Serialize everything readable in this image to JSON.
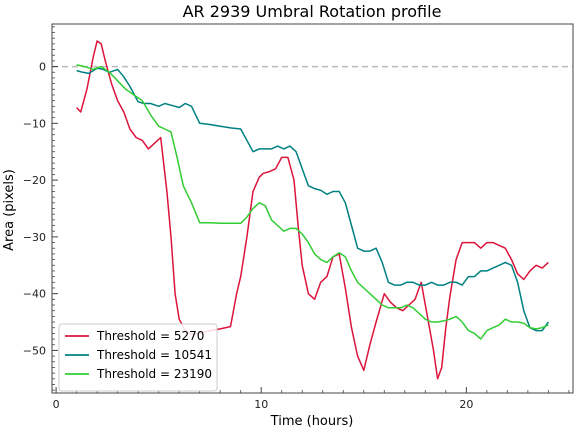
{
  "chart_data": {
    "type": "line",
    "title": "AR 2939 Umbral Rotation profile",
    "xlabel": "Time (hours)",
    "ylabel": "Area (pixels)",
    "xlim": [
      -0.2,
      25.2
    ],
    "ylim": [
      -57.5,
      7.5
    ],
    "xticks": [
      0,
      10,
      20
    ],
    "yticks": [
      0,
      -10,
      -20,
      -30,
      -40,
      -50
    ],
    "reference_line": {
      "y": 0,
      "style": "dashed",
      "color": "#bbbbbb"
    },
    "grid": false,
    "legend_position": "lower-left",
    "series": [
      {
        "name": "Threshold = 5270",
        "color": "#dc143c",
        "x": [
          1.0,
          1.2,
          1.5,
          1.8,
          2.0,
          2.2,
          2.4,
          2.7,
          3.0,
          3.3,
          3.6,
          3.9,
          4.2,
          4.5,
          4.8,
          5.1,
          5.4,
          5.6,
          5.8,
          6.0,
          6.3,
          6.6,
          7.0,
          7.5,
          8.0,
          8.5,
          8.8,
          9.0,
          9.3,
          9.6,
          9.9,
          10.1,
          10.4,
          10.7,
          11.0,
          11.3,
          11.6,
          11.8,
          12.0,
          12.3,
          12.6,
          12.9,
          13.2,
          13.5,
          13.8,
          14.1,
          14.4,
          14.7,
          15.0,
          15.3,
          15.6,
          16.0,
          16.3,
          16.6,
          16.9,
          17.2,
          17.5,
          17.8,
          18.1,
          18.4,
          18.6,
          18.8,
          19.0,
          19.2,
          19.5,
          19.8,
          20.1,
          20.4,
          20.7,
          21.0,
          21.3,
          21.6,
          21.9,
          22.2,
          22.5,
          22.8,
          23.1,
          23.4,
          23.7,
          24.0
        ],
        "y": [
          -7.2,
          -8.0,
          -4.0,
          1.5,
          4.5,
          4.0,
          1.0,
          -3.0,
          -6.0,
          -8.0,
          -11.0,
          -12.5,
          -13.0,
          -14.5,
          -13.5,
          -12.5,
          -22.0,
          -30.0,
          -40.0,
          -44.5,
          -46.5,
          -47.2,
          -47.0,
          -46.5,
          -46.2,
          -45.8,
          -40.0,
          -37.0,
          -30.0,
          -22.0,
          -19.5,
          -18.8,
          -18.5,
          -18.0,
          -16.0,
          -16.0,
          -20.0,
          -28.0,
          -35.0,
          -40.0,
          -41.0,
          -38.0,
          -37.0,
          -33.5,
          -33.0,
          -39.0,
          -46.0,
          -51.0,
          -53.5,
          -49.0,
          -45.0,
          -40.0,
          -41.5,
          -42.5,
          -43.0,
          -42.0,
          -41.0,
          -38.0,
          -44.0,
          -50.0,
          -55.0,
          -53.0,
          -46.0,
          -40.5,
          -34.0,
          -31.0,
          -31.0,
          -31.0,
          -32.0,
          -31.0,
          -31.0,
          -31.5,
          -32.0,
          -34.0,
          -36.5,
          -37.5,
          -36.0,
          -35.0,
          -35.5,
          -34.5
        ]
      },
      {
        "name": "Threshold = 10541",
        "color": "#008080",
        "x": [
          1.0,
          1.3,
          1.6,
          2.0,
          2.3,
          2.6,
          3.0,
          3.3,
          3.6,
          4.0,
          4.3,
          4.6,
          5.0,
          5.3,
          5.6,
          6.0,
          6.3,
          6.6,
          7.0,
          7.5,
          8.0,
          8.5,
          9.0,
          9.3,
          9.6,
          9.9,
          10.2,
          10.5,
          10.8,
          11.1,
          11.4,
          11.7,
          12.0,
          12.3,
          12.6,
          12.9,
          13.2,
          13.5,
          13.8,
          14.1,
          14.4,
          14.7,
          15.0,
          15.3,
          15.6,
          15.9,
          16.2,
          16.5,
          16.8,
          17.1,
          17.4,
          17.7,
          18.0,
          18.3,
          18.6,
          18.9,
          19.2,
          19.5,
          19.8,
          20.1,
          20.4,
          20.7,
          21.0,
          21.3,
          21.6,
          21.9,
          22.2,
          22.5,
          22.8,
          23.1,
          23.4,
          23.7,
          24.0
        ],
        "y": [
          -0.7,
          -1.0,
          -1.2,
          -0.3,
          -0.5,
          -1.0,
          -0.5,
          -1.8,
          -3.5,
          -6.2,
          -6.5,
          -6.5,
          -7.0,
          -6.5,
          -6.8,
          -7.2,
          -6.5,
          -7.0,
          -10.0,
          -10.2,
          -10.5,
          -10.8,
          -11.0,
          -13.0,
          -15.0,
          -14.5,
          -14.5,
          -14.5,
          -14.0,
          -14.5,
          -14.0,
          -15.0,
          -18.0,
          -21.0,
          -21.5,
          -21.8,
          -22.5,
          -22.0,
          -22.0,
          -24.0,
          -28.0,
          -32.0,
          -32.5,
          -32.5,
          -32.0,
          -34.5,
          -38.0,
          -38.5,
          -38.5,
          -38.0,
          -38.0,
          -38.5,
          -38.5,
          -38.0,
          -38.5,
          -38.5,
          -38.0,
          -38.0,
          -38.5,
          -37.0,
          -37.0,
          -36.0,
          -36.0,
          -35.5,
          -35.0,
          -34.5,
          -35.0,
          -38.0,
          -43.0,
          -46.0,
          -46.5,
          -46.5,
          -45.0
        ]
      },
      {
        "name": "Threshold = 23190",
        "color": "#32cd32",
        "x": [
          1.0,
          1.4,
          1.8,
          2.2,
          2.6,
          3.0,
          3.4,
          3.8,
          4.2,
          4.6,
          5.0,
          5.3,
          5.6,
          5.9,
          6.2,
          6.6,
          7.0,
          7.5,
          8.0,
          8.5,
          9.0,
          9.3,
          9.6,
          9.9,
          10.2,
          10.5,
          10.8,
          11.1,
          11.4,
          11.7,
          12.0,
          12.3,
          12.6,
          12.9,
          13.2,
          13.5,
          13.8,
          14.1,
          14.4,
          14.7,
          15.0,
          15.3,
          15.6,
          15.9,
          16.2,
          16.5,
          16.8,
          17.1,
          17.4,
          17.7,
          18.0,
          18.3,
          18.6,
          18.9,
          19.2,
          19.5,
          19.8,
          20.1,
          20.4,
          20.7,
          21.0,
          21.3,
          21.6,
          21.9,
          22.2,
          22.5,
          22.8,
          23.1,
          23.4,
          23.7,
          24.0
        ],
        "y": [
          0.3,
          0.0,
          -0.5,
          0.0,
          -1.0,
          -2.5,
          -4.0,
          -5.0,
          -6.0,
          -8.5,
          -10.5,
          -11.0,
          -11.5,
          -16.0,
          -21.0,
          -24.0,
          -27.5,
          -27.5,
          -27.6,
          -27.6,
          -27.6,
          -26.5,
          -25.0,
          -24.0,
          -24.5,
          -27.0,
          -28.0,
          -29.0,
          -28.5,
          -28.5,
          -29.5,
          -31.0,
          -33.0,
          -34.0,
          -34.5,
          -33.5,
          -32.8,
          -33.5,
          -36.0,
          -38.0,
          -39.0,
          -40.0,
          -41.0,
          -42.0,
          -42.5,
          -42.5,
          -42.5,
          -42.0,
          -42.5,
          -43.5,
          -44.5,
          -45.0,
          -45.0,
          -44.8,
          -44.5,
          -44.0,
          -45.0,
          -46.5,
          -47.0,
          -48.0,
          -46.5,
          -46.0,
          -45.5,
          -44.5,
          -45.0,
          -45.0,
          -45.2,
          -46.0,
          -46.2,
          -46.0,
          -45.5
        ]
      }
    ]
  }
}
